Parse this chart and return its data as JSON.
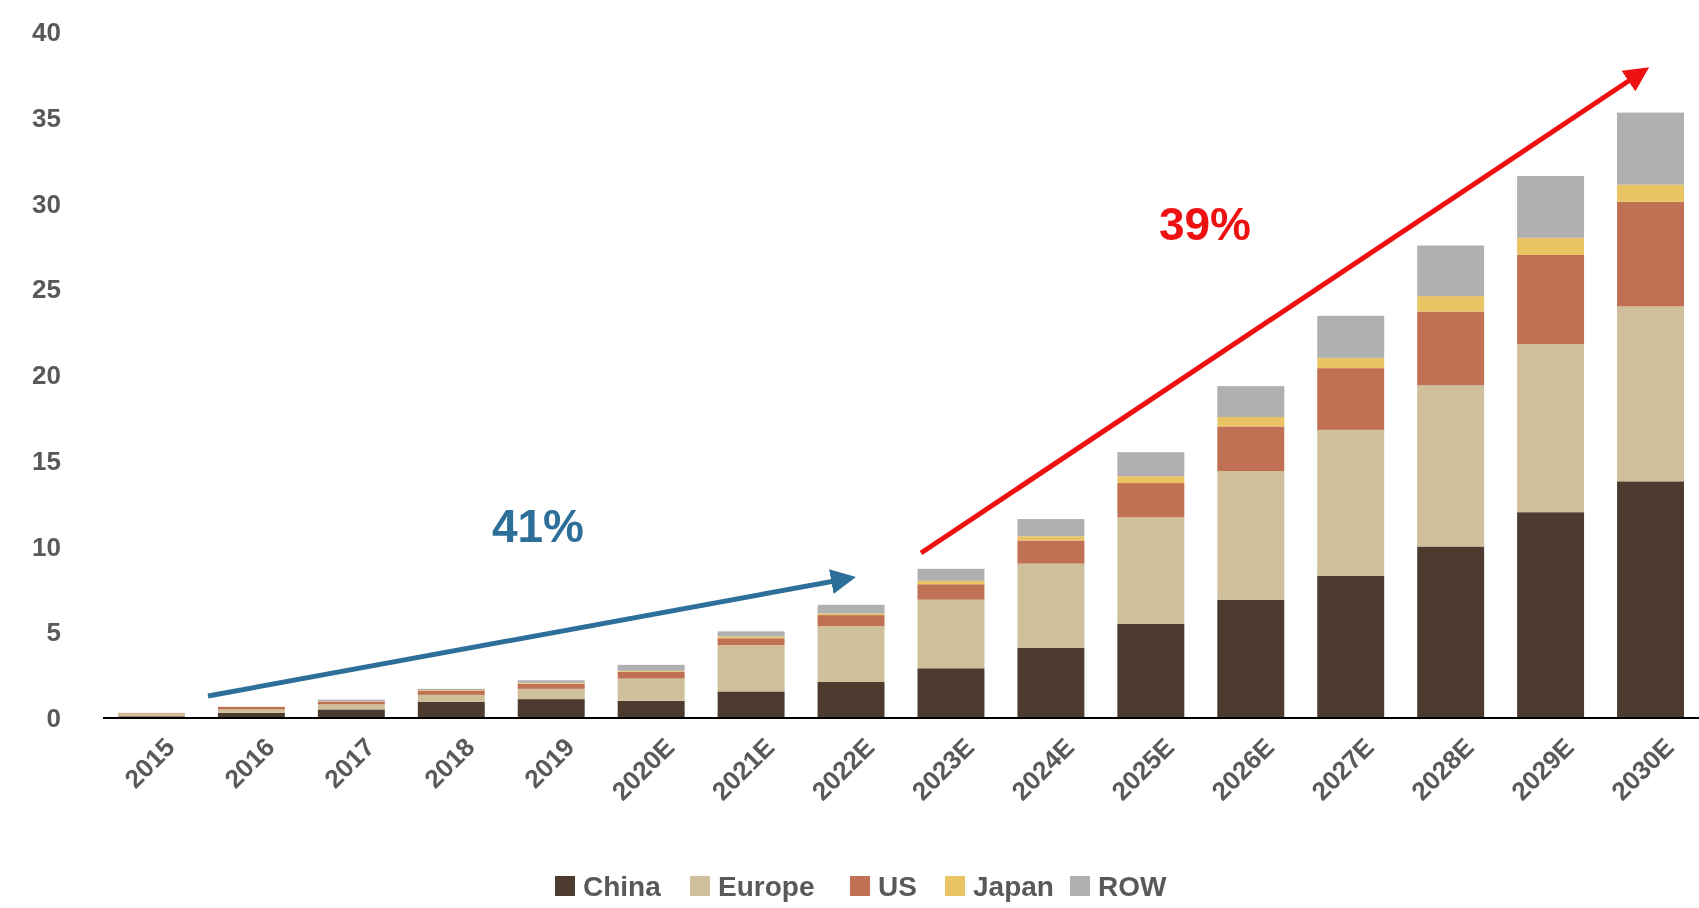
{
  "chart_data": {
    "type": "bar",
    "stacked": true,
    "categories": [
      "2015",
      "2016",
      "2017",
      "2018",
      "2019",
      "2020E",
      "2021E",
      "2022E",
      "2023E",
      "2024E",
      "2025E",
      "2026E",
      "2027E",
      "2028E",
      "2029E",
      "2030E"
    ],
    "series": [
      {
        "name": "China",
        "color": "#4e3b30",
        "values": [
          0.1,
          0.3,
          0.5,
          0.95,
          1.1,
          1.0,
          1.55,
          2.1,
          2.9,
          4.1,
          5.5,
          6.9,
          8.3,
          10.0,
          12.0,
          13.8
        ]
      },
      {
        "name": "Europe",
        "color": "#d0bf9b",
        "values": [
          0.15,
          0.2,
          0.3,
          0.4,
          0.6,
          1.3,
          2.7,
          3.25,
          4.0,
          4.9,
          6.2,
          7.5,
          8.5,
          9.4,
          9.8,
          10.2
        ]
      },
      {
        "name": "US",
        "color": "#c07154",
        "values": [
          0.03,
          0.15,
          0.15,
          0.25,
          0.3,
          0.4,
          0.4,
          0.65,
          0.9,
          1.35,
          2.0,
          2.6,
          3.6,
          4.3,
          5.2,
          6.1
        ]
      },
      {
        "name": "Japan",
        "color": "#e9c462",
        "values": [
          0.01,
          null,
          0.02,
          0.03,
          0.05,
          0.05,
          0.1,
          0.1,
          0.2,
          0.25,
          0.4,
          0.55,
          0.6,
          0.9,
          1.0,
          1.0
        ]
      },
      {
        "name": "ROW",
        "color": "#b0b0b3",
        "values": [
          0.01,
          null,
          0.1,
          0.07,
          0.15,
          0.35,
          0.3,
          0.5,
          0.7,
          1.0,
          1.4,
          1.8,
          2.45,
          2.95,
          3.6,
          4.2
        ]
      }
    ],
    "ylim": [
      0,
      40
    ],
    "yticks": [
      0,
      5,
      10,
      15,
      20,
      25,
      30,
      35,
      40
    ],
    "legend": "bottom",
    "annotations": [
      "41%",
      "39%"
    ]
  }
}
